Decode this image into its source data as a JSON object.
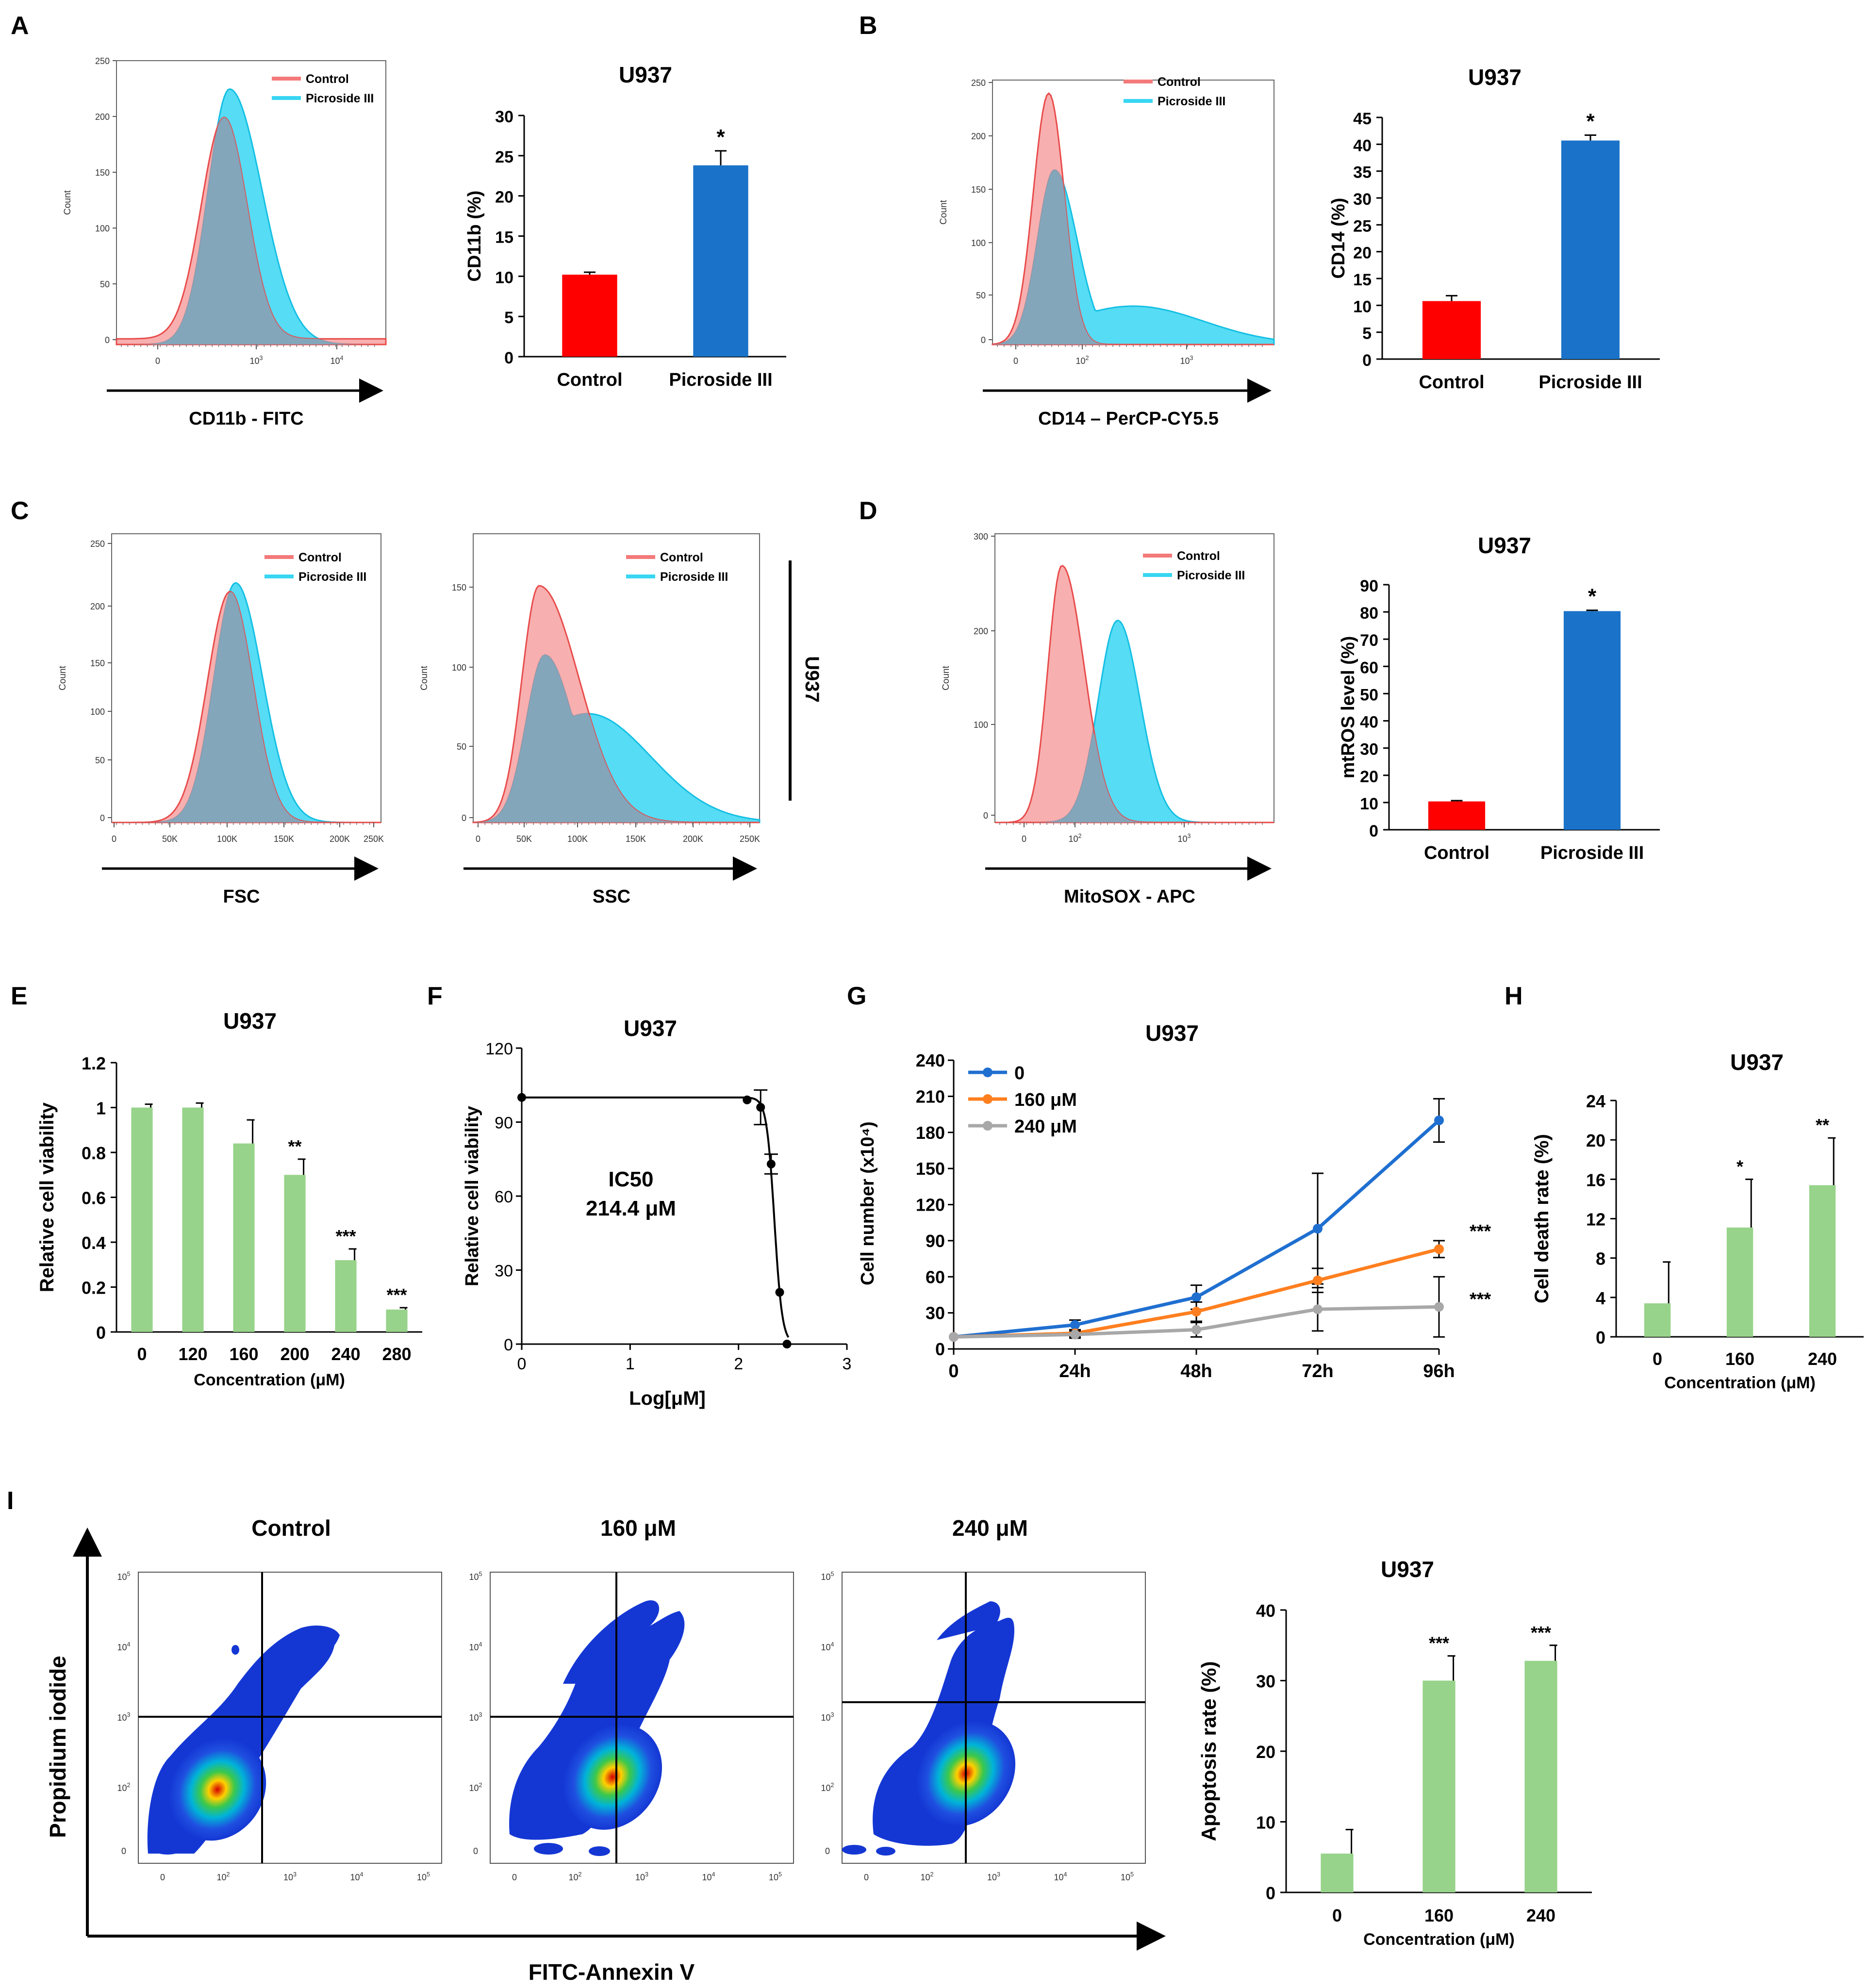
{
  "panel_letters": [
    "A",
    "B",
    "C",
    "D",
    "E",
    "F",
    "G",
    "H",
    "I"
  ],
  "colors": {
    "control": "#f47a7a",
    "control_line": "#e84b4b",
    "picro": "#38d6f2",
    "picro_line": "#14bfe3",
    "overlap": "#7ea6bd",
    "bar_red": "#ff0000",
    "bar_blue": "#1a73c9",
    "green": "#97d38a",
    "line_blue": "#1f6fd0",
    "line_orange": "#ff7f1f",
    "line_gray": "#a8a8a8"
  },
  "chart_data": [
    {
      "id": "A_hist",
      "type": "histogram",
      "xlabel": "CD11b - FITC",
      "ylabel": "Count",
      "yticks": [
        "0",
        "50",
        "100",
        "150",
        "200",
        "250"
      ],
      "xticks": [
        "0",
        "10^3",
        "10^4"
      ],
      "legend": [
        "Control",
        "Picroside III"
      ]
    },
    {
      "id": "A_bar",
      "type": "bar",
      "title": "U937",
      "ylabel": "CD11b (%)",
      "categories": [
        "Control",
        "Picroside III"
      ],
      "values": [
        10.2,
        23.8
      ],
      "errors": [
        0.3,
        1.8
      ],
      "sig": [
        "",
        "*"
      ],
      "ylim": [
        0,
        30
      ],
      "yticks": [
        0,
        5,
        10,
        15,
        20,
        25,
        30
      ]
    },
    {
      "id": "B_hist",
      "type": "histogram",
      "xlabel": "CD14 – PerCP-CY5.5",
      "ylabel": "Count",
      "yticks": [
        "0",
        "50",
        "100",
        "150",
        "200",
        "250"
      ],
      "xticks": [
        "0",
        "10^2",
        "10^3"
      ],
      "legend": [
        "Control",
        "Picroside III"
      ]
    },
    {
      "id": "B_bar",
      "type": "bar",
      "title": "U937",
      "ylabel": "CD14 (%)",
      "categories": [
        "Control",
        "Picroside III"
      ],
      "values": [
        10.8,
        40.7
      ],
      "errors": [
        1.0,
        1.0
      ],
      "sig": [
        "",
        "*"
      ],
      "ylim": [
        0,
        45
      ],
      "yticks": [
        0,
        5,
        10,
        15,
        20,
        25,
        30,
        35,
        40,
        45
      ]
    },
    {
      "id": "C_fsc",
      "type": "histogram",
      "xlabel": "FSC",
      "ylabel": "Count",
      "yticks": [
        "0",
        "50",
        "100",
        "150",
        "200",
        "250"
      ],
      "xticks": [
        "0",
        "50K",
        "100K",
        "150K",
        "200K",
        "250K"
      ],
      "legend": [
        "Control",
        "Picroside III"
      ]
    },
    {
      "id": "C_ssc",
      "type": "histogram",
      "xlabel": "SSC",
      "ylabel": "Count",
      "yticks": [
        "0",
        "50",
        "100",
        "150"
      ],
      "xticks": [
        "0",
        "50K",
        "100K",
        "150K",
        "200K",
        "250K"
      ],
      "legend": [
        "Control",
        "Picroside III"
      ],
      "side_label": "U937"
    },
    {
      "id": "D_hist",
      "type": "histogram",
      "xlabel": "MitoSOX - APC",
      "ylabel": "Count",
      "yticks": [
        "0",
        "100",
        "200",
        "300"
      ],
      "xticks": [
        "0",
        "10^2",
        "10^3"
      ],
      "legend": [
        "Control",
        "Picroside III"
      ]
    },
    {
      "id": "D_bar",
      "type": "bar",
      "title": "U937",
      "ylabel": "mtROS level (%)",
      "categories": [
        "Control",
        "Picroside III"
      ],
      "values": [
        10.4,
        80.3
      ],
      "errors": [
        0.3,
        0.3
      ],
      "sig": [
        "",
        "*"
      ],
      "ylim": [
        0,
        90
      ],
      "yticks": [
        0,
        10,
        20,
        30,
        40,
        50,
        60,
        70,
        80,
        90
      ]
    },
    {
      "id": "E_bar",
      "type": "bar",
      "title": "U937",
      "ylabel": "Relative cell viability",
      "xlabel": "Concentration (μM)",
      "categories": [
        "0",
        "120",
        "160",
        "200",
        "240",
        "280"
      ],
      "values": [
        1.0,
        1.0,
        0.84,
        0.7,
        0.32,
        0.1
      ],
      "errors": [
        0.015,
        0.02,
        0.105,
        0.07,
        0.05,
        0.008
      ],
      "sig": [
        "",
        "",
        "",
        "**",
        "***",
        "***"
      ],
      "ylim": [
        0,
        1.2
      ],
      "yticks": [
        "0",
        "0.2",
        "0.4",
        "0.6",
        "0.8",
        "1",
        "1.2"
      ]
    },
    {
      "id": "F_curve",
      "type": "line",
      "title": "U937",
      "ylabel": "Relative cell viability",
      "xlabel": "Log[μM]",
      "annotation": [
        "IC50",
        "214.4 μM"
      ],
      "x": [
        0,
        2.079,
        2.204,
        2.301,
        2.38,
        2.447
      ],
      "y": [
        100,
        99,
        96,
        73,
        21,
        0
      ],
      "errors": [
        0,
        0,
        7,
        4,
        0,
        0
      ],
      "xlim": [
        0,
        3
      ],
      "ylim": [
        0,
        120
      ],
      "xticks": [
        0,
        1,
        2,
        3
      ],
      "yticks": [
        0,
        30,
        60,
        90,
        120
      ]
    },
    {
      "id": "G_line",
      "type": "line",
      "title": "U937",
      "ylabel": "Cell number (x10⁴)",
      "categories": [
        "0",
        "24h",
        "48h",
        "72h",
        "96h"
      ],
      "series": [
        {
          "name": "0",
          "values": [
            10,
            20,
            43,
            100,
            190
          ],
          "errors": [
            0,
            4,
            10,
            46,
            18
          ]
        },
        {
          "name": "160 μM",
          "values": [
            10,
            13,
            31,
            57,
            83
          ],
          "errors": [
            0,
            3,
            8,
            10,
            7
          ]
        },
        {
          "name": "240 μM",
          "values": [
            10,
            12,
            16,
            33,
            35
          ],
          "errors": [
            0,
            3,
            6,
            18,
            25
          ]
        }
      ],
      "sig": [
        "***",
        "***"
      ],
      "ylim": [
        0,
        240
      ],
      "yticks": [
        0,
        30,
        60,
        90,
        120,
        150,
        180,
        210,
        240
      ]
    },
    {
      "id": "H_bar",
      "type": "bar",
      "title": "U937",
      "ylabel": "Cell death rate (%)",
      "xlabel": "Concentration (μM)",
      "categories": [
        "0",
        "160",
        "240"
      ],
      "values": [
        3.4,
        11.1,
        15.4
      ],
      "errors": [
        4.2,
        4.9,
        4.8
      ],
      "sig": [
        "",
        "*",
        "**"
      ],
      "ylim": [
        0,
        24
      ],
      "yticks": [
        0,
        4,
        8,
        12,
        16,
        20,
        24
      ]
    },
    {
      "id": "I_bar",
      "type": "bar",
      "title": "U937",
      "ylabel": "Apoptosis rate (%)",
      "xlabel": "Concentration (μM)",
      "categories": [
        "0",
        "160",
        "240"
      ],
      "values": [
        5.5,
        30.0,
        32.8
      ],
      "errors": [
        3.4,
        3.5,
        2.2
      ],
      "sig": [
        "",
        "***",
        "***"
      ],
      "ylim": [
        0,
        40
      ],
      "yticks": [
        0,
        10,
        20,
        30,
        40
      ]
    }
  ],
  "flow_I": {
    "titles": [
      "Control",
      "160 μM",
      "240 μM"
    ],
    "xlabel": "FITC-Annexin V",
    "ylabel": "Propidium iodide",
    "yticks": [
      "0",
      "10^2",
      "10^3",
      "10^4",
      "10^5"
    ],
    "xticks": [
      "0",
      "10^2",
      "10^3",
      "10^4",
      "10^5"
    ]
  }
}
